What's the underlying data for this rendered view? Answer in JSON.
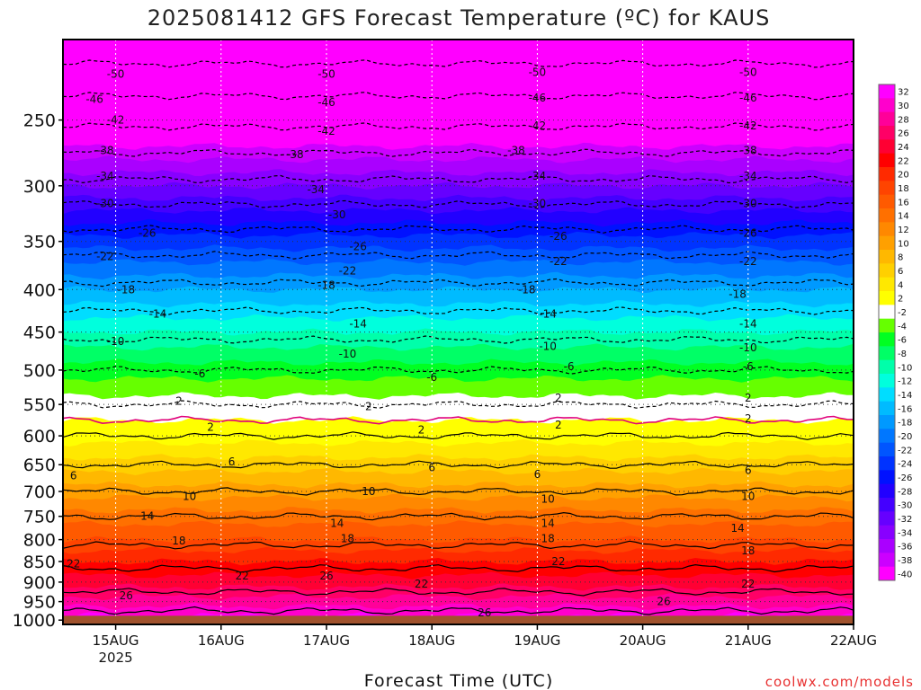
{
  "chart_data": {
    "type": "heatmap",
    "title": "2025081412 GFS Forecast Temperature (ºC) for KAUS",
    "xlabel": "Forecast Time (UTC)",
    "ylabel": "",
    "credit": "coolwx.com/models",
    "x_ticks": [
      {
        "day": 15,
        "label": "15AUG",
        "sub": "2025"
      },
      {
        "day": 16,
        "label": "16AUG",
        "sub": ""
      },
      {
        "day": 17,
        "label": "17AUG",
        "sub": ""
      },
      {
        "day": 18,
        "label": "18AUG",
        "sub": ""
      },
      {
        "day": 19,
        "label": "19AUG",
        "sub": ""
      },
      {
        "day": 20,
        "label": "20AUG",
        "sub": ""
      },
      {
        "day": 21,
        "label": "21AUG",
        "sub": ""
      },
      {
        "day": 22,
        "label": "22AUG",
        "sub": ""
      }
    ],
    "xlim_days": [
      14.5,
      22.0
    ],
    "y_ticks": [
      "250",
      "300",
      "350",
      "400",
      "450",
      "500",
      "550",
      "600",
      "650",
      "700",
      "750",
      "800",
      "850",
      "900",
      "950",
      "1000"
    ],
    "y_tick_values": [
      250,
      300,
      350,
      400,
      450,
      500,
      550,
      600,
      650,
      700,
      750,
      800,
      850,
      900,
      950,
      1000
    ],
    "y_scale": "log",
    "ylim_hPa": [
      1012,
      200
    ],
    "surface_pressure_hPa": 988,
    "surface_color": "#a0522d",
    "colorbar": {
      "labels": [
        "32",
        "30",
        "28",
        "26",
        "24",
        "22",
        "20",
        "18",
        "16",
        "14",
        "12",
        "10",
        "8",
        "6",
        "4",
        "2",
        "-2",
        "-4",
        "-6",
        "-8",
        "-10",
        "-12",
        "-14",
        "-16",
        "-18",
        "-20",
        "-22",
        "-24",
        "-26",
        "-28",
        "-30",
        "-32",
        "-34",
        "-36",
        "-38",
        "-40"
      ],
      "colors": [
        "#ff00ff",
        "#ff00cc",
        "#ff0099",
        "#ff0066",
        "#ff0033",
        "#ff0000",
        "#ff2a00",
        "#ff4400",
        "#ff5a00",
        "#ff7000",
        "#ff8800",
        "#ffa000",
        "#ffb800",
        "#ffd000",
        "#ffe800",
        "#ffff00",
        "#ffffff",
        "#66ff00",
        "#00ff22",
        "#00ff66",
        "#00ffaa",
        "#00ffdd",
        "#00ddff",
        "#00bbff",
        "#0099ff",
        "#0077ff",
        "#0055ff",
        "#0033ff",
        "#0011ff",
        "#2200ff",
        "#4400ff",
        "#6600ff",
        "#8800ff",
        "#aa00ff",
        "#cc00ff",
        "#ff00ff"
      ]
    },
    "temperature_profile": [
      {
        "p": 1000,
        "t": 32
      },
      {
        "p": 950,
        "t": 28
      },
      {
        "p": 900,
        "t": 24
      },
      {
        "p": 850,
        "t": 21
      },
      {
        "p": 800,
        "t": 17
      },
      {
        "p": 750,
        "t": 14
      },
      {
        "p": 700,
        "t": 10
      },
      {
        "p": 650,
        "t": 6
      },
      {
        "p": 600,
        "t": 2
      },
      {
        "p": 550,
        "t": -2
      },
      {
        "p": 500,
        "t": -6
      },
      {
        "p": 450,
        "t": -11
      },
      {
        "p": 400,
        "t": -17
      },
      {
        "p": 350,
        "t": -24
      },
      {
        "p": 300,
        "t": -33
      },
      {
        "p": 250,
        "t": -43
      },
      {
        "p": 200,
        "t": -53
      }
    ],
    "contour_labels": [
      {
        "value": "-50",
        "day": 15.0,
        "p": 220
      },
      {
        "value": "-50",
        "day": 17.0,
        "p": 220
      },
      {
        "value": "-50",
        "day": 19.0,
        "p": 219
      },
      {
        "value": "-50",
        "day": 21.0,
        "p": 219
      },
      {
        "value": "-46",
        "day": 14.8,
        "p": 236
      },
      {
        "value": "-46",
        "day": 17.0,
        "p": 238
      },
      {
        "value": "-46",
        "day": 19.0,
        "p": 235
      },
      {
        "value": "-46",
        "day": 21.0,
        "p": 235
      },
      {
        "value": "-42",
        "day": 15.0,
        "p": 250
      },
      {
        "value": "-42",
        "day": 17.0,
        "p": 258
      },
      {
        "value": "-42",
        "day": 19.0,
        "p": 254
      },
      {
        "value": "-42",
        "day": 21.0,
        "p": 254
      },
      {
        "value": "-38",
        "day": 14.9,
        "p": 272
      },
      {
        "value": "-38",
        "day": 16.7,
        "p": 275
      },
      {
        "value": "-38",
        "day": 18.8,
        "p": 272
      },
      {
        "value": "-38",
        "day": 21.0,
        "p": 272
      },
      {
        "value": "-34",
        "day": 14.9,
        "p": 292
      },
      {
        "value": "-34",
        "day": 16.9,
        "p": 303
      },
      {
        "value": "-34",
        "day": 19.0,
        "p": 292
      },
      {
        "value": "-34",
        "day": 21.0,
        "p": 292
      },
      {
        "value": "-30",
        "day": 14.9,
        "p": 315
      },
      {
        "value": "-30",
        "day": 17.1,
        "p": 325
      },
      {
        "value": "-30",
        "day": 19.0,
        "p": 315
      },
      {
        "value": "-30",
        "day": 21.0,
        "p": 315
      },
      {
        "value": "-26",
        "day": 15.3,
        "p": 342
      },
      {
        "value": "-26",
        "day": 17.3,
        "p": 355
      },
      {
        "value": "-26",
        "day": 19.2,
        "p": 345
      },
      {
        "value": "-26",
        "day": 21.0,
        "p": 342
      },
      {
        "value": "-22",
        "day": 14.9,
        "p": 365
      },
      {
        "value": "-22",
        "day": 17.2,
        "p": 380
      },
      {
        "value": "-22",
        "day": 19.2,
        "p": 370
      },
      {
        "value": "-22",
        "day": 21.0,
        "p": 370
      },
      {
        "value": "-18",
        "day": 15.1,
        "p": 400
      },
      {
        "value": "-18",
        "day": 17.0,
        "p": 395
      },
      {
        "value": "-18",
        "day": 18.9,
        "p": 400
      },
      {
        "value": "-18",
        "day": 20.9,
        "p": 405
      },
      {
        "value": "-14",
        "day": 15.4,
        "p": 428
      },
      {
        "value": "-14",
        "day": 17.3,
        "p": 440
      },
      {
        "value": "-14",
        "day": 19.1,
        "p": 428
      },
      {
        "value": "-14",
        "day": 21.0,
        "p": 440
      },
      {
        "value": "-10",
        "day": 15.0,
        "p": 462
      },
      {
        "value": "-10",
        "day": 17.2,
        "p": 478
      },
      {
        "value": "-10",
        "day": 19.1,
        "p": 468
      },
      {
        "value": "-10",
        "day": 21.0,
        "p": 470
      },
      {
        "value": "-6",
        "day": 15.8,
        "p": 505
      },
      {
        "value": "-6",
        "day": 18.0,
        "p": 510
      },
      {
        "value": "-6",
        "day": 19.3,
        "p": 495
      },
      {
        "value": "-6",
        "day": 21.0,
        "p": 495
      },
      {
        "value": "2",
        "day": 15.6,
        "p": 545
      },
      {
        "value": "2",
        "day": 17.4,
        "p": 553
      },
      {
        "value": "2",
        "day": 19.2,
        "p": 540
      },
      {
        "value": "2",
        "day": 21.0,
        "p": 540
      },
      {
        "value": "2",
        "day": 15.9,
        "p": 586
      },
      {
        "value": "2",
        "day": 17.9,
        "p": 590
      },
      {
        "value": "2",
        "day": 19.2,
        "p": 582
      },
      {
        "value": "2",
        "day": 21.0,
        "p": 572
      },
      {
        "value": "6",
        "day": 14.6,
        "p": 670
      },
      {
        "value": "6",
        "day": 16.1,
        "p": 645
      },
      {
        "value": "6",
        "day": 18.0,
        "p": 655
      },
      {
        "value": "6",
        "day": 19.0,
        "p": 668
      },
      {
        "value": "6",
        "day": 21.0,
        "p": 660
      },
      {
        "value": "10",
        "day": 15.7,
        "p": 710
      },
      {
        "value": "10",
        "day": 17.4,
        "p": 700
      },
      {
        "value": "10",
        "day": 19.1,
        "p": 715
      },
      {
        "value": "10",
        "day": 21.0,
        "p": 710
      },
      {
        "value": "14",
        "day": 15.3,
        "p": 750
      },
      {
        "value": "14",
        "day": 17.1,
        "p": 765
      },
      {
        "value": "14",
        "day": 19.1,
        "p": 765
      },
      {
        "value": "14",
        "day": 20.9,
        "p": 775
      },
      {
        "value": "18",
        "day": 15.6,
        "p": 803
      },
      {
        "value": "18",
        "day": 17.2,
        "p": 798
      },
      {
        "value": "18",
        "day": 19.1,
        "p": 798
      },
      {
        "value": "18",
        "day": 21.0,
        "p": 825
      },
      {
        "value": "22",
        "day": 14.6,
        "p": 855
      },
      {
        "value": "22",
        "day": 16.2,
        "p": 885
      },
      {
        "value": "22",
        "day": 17.9,
        "p": 905
      },
      {
        "value": "22",
        "day": 19.2,
        "p": 850
      },
      {
        "value": "22",
        "day": 21.0,
        "p": 905
      },
      {
        "value": "26",
        "day": 15.1,
        "p": 935
      },
      {
        "value": "26",
        "day": 17.0,
        "p": 885
      },
      {
        "value": "26",
        "day": 18.5,
        "p": 980
      },
      {
        "value": "26",
        "day": 20.2,
        "p": 950
      }
    ]
  }
}
